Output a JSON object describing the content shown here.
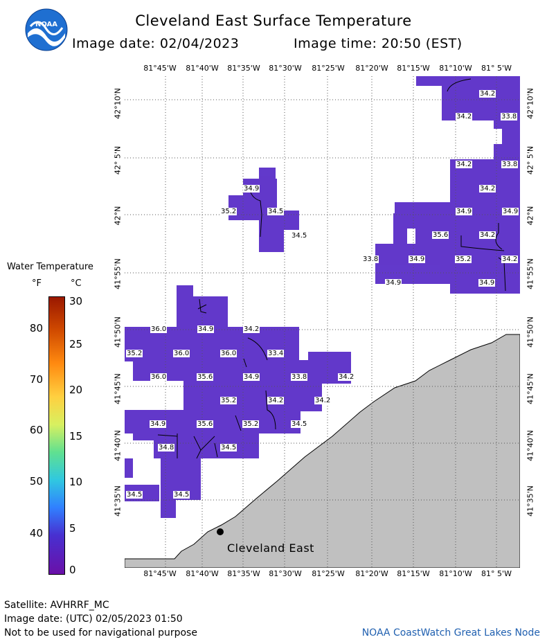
{
  "header": {
    "title": "Cleveland East Surface Temperature",
    "image_date": "Image date: 02/04/2023",
    "image_time": "Image time: 20:50 (EST)",
    "logo_text": "NOAA"
  },
  "longitude_labels": [
    "81°45'W",
    "81°40'W",
    "81°35'W",
    "81°30'W",
    "81°25'W",
    "81°20'W",
    "81°15'W",
    "81°10'W",
    "81° 5'W"
  ],
  "latitude_labels": [
    "42°10'N",
    "42° 5'N",
    "42°N",
    "41°55'N",
    "41°50'N",
    "41°45'N",
    "41°40'N",
    "41°35'N"
  ],
  "legend": {
    "title": "Water Temperature",
    "unit_f": "°F",
    "unit_c": "°C",
    "f_ticks": [
      "80",
      "70",
      "60",
      "50",
      "40"
    ],
    "c_ticks": [
      "30",
      "25",
      "20",
      "15",
      "10",
      "5",
      "0"
    ],
    "colors": [
      "#b22000",
      "#ff6a00",
      "#ffd400",
      "#b0f040",
      "#30e080",
      "#20c0e0",
      "#2070ff",
      "#4020c0",
      "#7010a0"
    ]
  },
  "map": {
    "water_color": "#5a2ec8",
    "land_color": "#c0c0c0",
    "station": "Cleveland East",
    "temperature_labels": [
      "34.2",
      "34.2",
      "33.8",
      "34.2",
      "33.8",
      "34.2",
      "34.9",
      "34.9",
      "35.6",
      "34.2",
      "33.8",
      "34.9",
      "35.2",
      "34.9",
      "34.2",
      "34.9",
      "34.9",
      "35.2",
      "34.5",
      "34.5",
      "36.0",
      "34.9",
      "34.2",
      "35.2",
      "36.0",
      "36.0",
      "33.4",
      "36.0",
      "35.6",
      "34.9",
      "33.8",
      "34.2",
      "35.2",
      "34.2",
      "34.2",
      "34.9",
      "35.6",
      "35.2",
      "34.5",
      "34.8",
      "34.5",
      "34.5",
      "34.5"
    ]
  },
  "footer": {
    "satellite": "Satellite: AVHRRF_MC",
    "utc_date": "Image date: (UTC) 02/05/2023  01:50",
    "disclaimer": "Not to be used for navigational purpose",
    "node": "NOAA CoastWatch Great Lakes Node"
  }
}
